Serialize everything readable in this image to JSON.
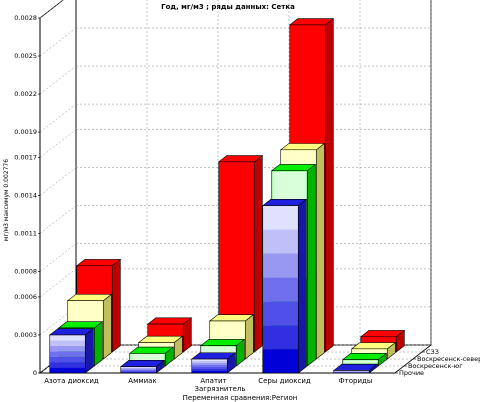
{
  "chart_data": {
    "type": "bar",
    "title": "Год,  мг/м3 ; ряды данных: Сетка",
    "ylabel": "мг/м3  максимум 0.002776",
    "xlabel": "Загрязнитель",
    "zlabel": "Переменная сравнения:Регион",
    "ylim": [
      0,
      0.0028
    ],
    "yticks": [
      "0",
      "0.0003",
      "0.0006",
      "0.0008",
      "0.0011",
      "0.0014",
      "0.0017",
      "0.0019",
      "0.0022",
      "0.0025",
      "0.0028"
    ],
    "categories": [
      "Азота диоксид",
      "Аммиак",
      "Апатит",
      "Серы диоксид",
      "Фториды"
    ],
    "series": [
      {
        "name": "Прочие",
        "values": [
          0.0003,
          5e-05,
          0.00011,
          0.00132,
          2e-05
        ]
      },
      {
        "name": "Воскресенск-юг",
        "values": [
          0.0003,
          0.0001,
          0.00016,
          0.00154,
          5e-05
        ]
      },
      {
        "name": "Воскресенск-север",
        "values": [
          0.00046,
          0.00013,
          0.0003,
          0.00165,
          8e-05
        ]
      },
      {
        "name": "СЗЗ",
        "values": [
          0.00068,
          0.00022,
          0.0015,
          0.00258,
          0.00012
        ]
      }
    ],
    "colors": {
      "series": [
        "#1f1fe0",
        "#00ee00",
        "#ffff80",
        "#ff0000"
      ],
      "stripe_shades": [
        "#0000d8",
        "#3030e0",
        "#5050e8",
        "#7070ee",
        "#9898f2",
        "#c0c0f8",
        "#e0e0ff"
      ],
      "light_yellow": "#ffffc8",
      "light_green": "#d8ffd8"
    },
    "grid": true
  }
}
